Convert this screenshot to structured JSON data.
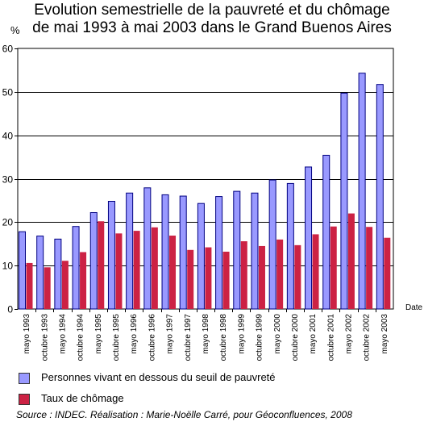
{
  "title_line1": "Evolution semestrielle de la pauvreté et du chômage",
  "title_line2": "de mai 1993 à mai 2003 dans le Grand Buenos Aires",
  "colors": {
    "pauvrete": "#9999ff",
    "chomage": "#cc2244"
  },
  "legend": [
    {
      "label": "Personnes vivant en dessous du seuil de pauvreté",
      "color": "#9999ff"
    },
    {
      "label": "Taux de chômage",
      "color": "#cc2244"
    }
  ],
  "source": "Source : INDEC. Réalisation : Marie-Noëlle Carré, pour Géoconfluences, 2008",
  "chart_data": {
    "type": "bar",
    "ylabel": "%",
    "xlabel": "Date",
    "ylim": [
      0,
      60
    ],
    "yticks": [
      0,
      10,
      20,
      30,
      40,
      50,
      60
    ],
    "grid": true,
    "categories": [
      "mayo 1993",
      "octubre 1993",
      "mayo 1994",
      "octubre 1994",
      "mayo 1995",
      "octubre 1995",
      "mayo 1996",
      "octubre 1996",
      "mayo 1997",
      "octubre 1997",
      "mayo 1998",
      "octubre 1998",
      "mayo 1999",
      "octubre 1999",
      "mayo 2000",
      "octubre 2000",
      "mayo 2001",
      "octubre 2001",
      "mayo 2002",
      "octubre 2002",
      "mayo 2003"
    ],
    "series": [
      {
        "name": "Personnes vivant en dessous du seuil de pauvreté",
        "color": "#9999ff",
        "values": [
          17.8,
          16.8,
          16.1,
          19.0,
          22.2,
          24.8,
          26.7,
          27.9,
          26.3,
          26.0,
          24.3,
          25.9,
          27.1,
          26.7,
          29.7,
          28.9,
          32.7,
          35.4,
          49.7,
          54.3,
          51.7
        ]
      },
      {
        "name": "Taux de chômage",
        "color": "#cc2244",
        "values": [
          10.6,
          9.6,
          11.1,
          13.1,
          20.2,
          17.4,
          18.0,
          18.8,
          16.9,
          13.6,
          14.2,
          13.2,
          15.6,
          14.5,
          16.0,
          14.7,
          17.2,
          19.0,
          22.0,
          18.9,
          16.4
        ]
      }
    ]
  }
}
